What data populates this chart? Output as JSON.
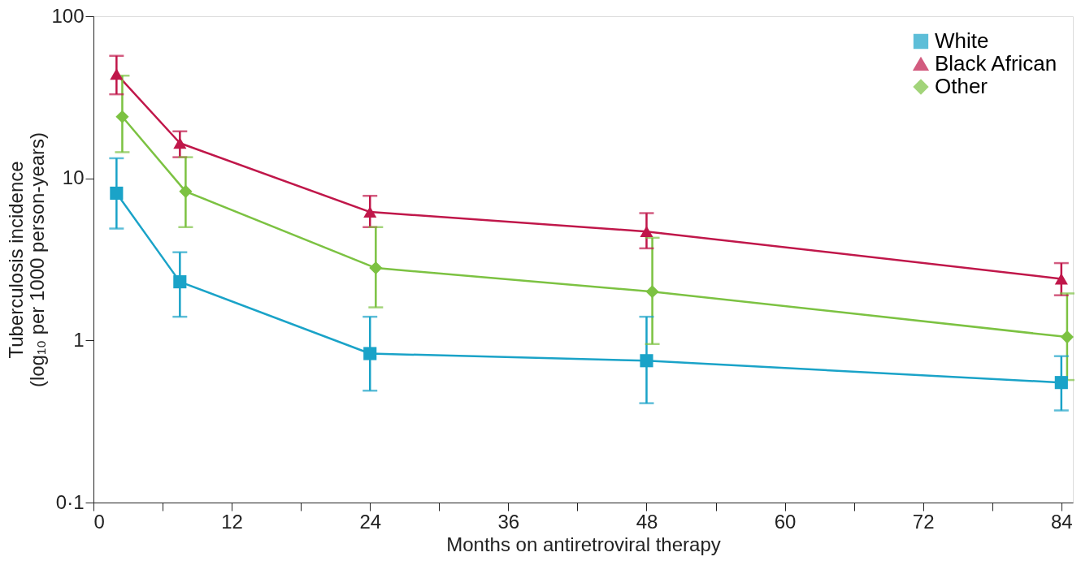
{
  "chart_data": {
    "type": "line",
    "xlabel": "Months on antiretroviral therapy",
    "ylabel": "Tuberculosis incidence\n(log₁₀ per 1000 person-years)",
    "log": "y",
    "xlim": [
      0,
      85
    ],
    "xticks": [
      0,
      {
        "value": 6,
        "label": null
      },
      12,
      {
        "value": 18,
        "label": null
      },
      24,
      {
        "value": 30,
        "label": null
      },
      36,
      {
        "value": 42,
        "label": null
      },
      48,
      {
        "value": 54,
        "label": null
      },
      60,
      {
        "value": 66,
        "label": null
      },
      72,
      {
        "value": 78,
        "label": null
      },
      84
    ],
    "ylim": [
      0.1,
      100
    ],
    "yticks": [
      {
        "value": 0.1,
        "label": "0·1"
      },
      1,
      10,
      100
    ],
    "grid": false,
    "legend": "top right",
    "line_style": "solid",
    "series": [
      {
        "name": "White",
        "color": "#1aa3c8",
        "marker": "square",
        "x": [
          2,
          7.5,
          24,
          48,
          84
        ],
        "values": [
          8.1,
          2.3,
          0.83,
          0.75,
          0.55
        ],
        "errors": [
          [
            4.9,
            13.3
          ],
          [
            1.4,
            3.5
          ],
          [
            0.49,
            1.4
          ],
          [
            0.41,
            1.4
          ],
          [
            0.37,
            0.8
          ]
        ]
      },
      {
        "name": "Black African",
        "color": "#c0174a",
        "marker": "triangle",
        "x": [
          2,
          7.5,
          24,
          48,
          84
        ],
        "values": [
          44,
          16.5,
          6.2,
          4.7,
          2.4
        ],
        "errors": [
          [
            33,
            57
          ],
          [
            13.5,
            19.5
          ],
          [
            5,
            7.8
          ],
          [
            3.7,
            6.1
          ],
          [
            1.9,
            3
          ]
        ]
      },
      {
        "name": "Other",
        "color": "#7cc242",
        "marker": "diamond",
        "x": [
          2.5,
          8,
          24.5,
          48.5,
          84.5
        ],
        "values": [
          24,
          8.3,
          2.8,
          2,
          1.05
        ],
        "errors": [
          [
            14.5,
            43
          ],
          [
            5,
            13.5
          ],
          [
            1.6,
            5
          ],
          [
            0.95,
            4.3
          ],
          [
            0.57,
            1.95
          ]
        ]
      }
    ]
  }
}
